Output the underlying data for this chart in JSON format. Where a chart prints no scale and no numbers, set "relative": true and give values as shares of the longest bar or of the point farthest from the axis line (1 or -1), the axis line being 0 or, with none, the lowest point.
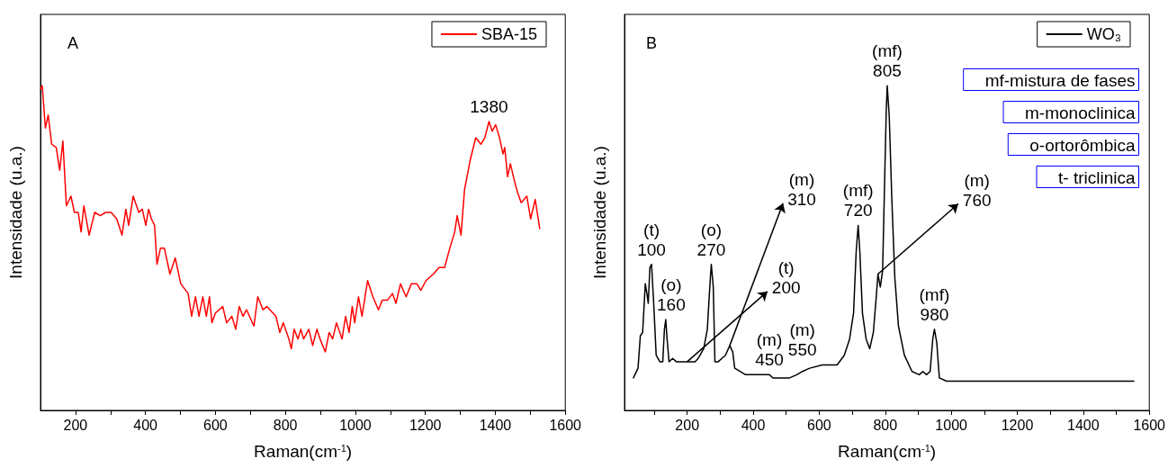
{
  "chart_data": [
    {
      "type": "line",
      "title": "A",
      "xlabel": "Raman(cm$^{-1}$)",
      "ylabel": "Intensidade (u.a.)",
      "relative": true,
      "legend": "top right",
      "grid": false,
      "marker": "none",
      "xlim": [
        100,
        1600
      ],
      "xticks": [
        200,
        {
          "value": 300,
          "label": null
        },
        400,
        {
          "value": 500,
          "label": null
        },
        600,
        {
          "value": 700,
          "label": null
        },
        800,
        {
          "value": 900,
          "label": null
        },
        1000,
        {
          "value": 1100,
          "label": null
        },
        1200,
        {
          "value": 1300,
          "label": null
        },
        1400,
        {
          "value": 1500,
          "label": null
        },
        1600
      ],
      "series": [
        {
          "name": "SBA-15",
          "color": "#ff0000",
          "x": [
            100,
            105,
            114,
            122,
            132,
            145,
            155,
            164,
            174,
            187,
            197,
            208,
            216,
            224,
            239,
            255,
            271,
            286,
            302,
            318,
            333,
            344,
            352,
            365,
            381,
            391,
            401,
            409,
            417,
            426,
            433,
            443,
            454,
            470,
            485,
            501,
            522,
            532,
            543,
            553,
            564,
            574,
            583,
            590,
            600,
            621,
            632,
            647,
            658,
            668,
            679,
            689,
            710,
            721,
            736,
            747,
            773,
            784,
            794,
            810,
            817,
            825,
            836,
            844,
            852,
            867,
            878,
            890,
            899,
            914,
            925,
            935,
            946,
            962,
            972,
            982,
            991,
            998,
            1009,
            1019,
            1035,
            1050,
            1066,
            1077,
            1092,
            1106,
            1116,
            1129,
            1145,
            1160,
            1176,
            1187,
            1202,
            1223,
            1239,
            1255,
            1270,
            1284,
            1291,
            1302,
            1312,
            1328,
            1344,
            1359,
            1370,
            1382,
            1391,
            1401,
            1412,
            1422,
            1427,
            1435,
            1443,
            1454,
            1464,
            1474,
            1490,
            1501,
            1514,
            1527
          ],
          "values": [
            0.99,
            1.0,
            0.87,
            0.91,
            0.82,
            0.81,
            0.74,
            0.83,
            0.63,
            0.66,
            0.61,
            0.61,
            0.55,
            0.63,
            0.54,
            0.61,
            0.6,
            0.61,
            0.61,
            0.59,
            0.54,
            0.62,
            0.57,
            0.66,
            0.61,
            0.62,
            0.57,
            0.62,
            0.59,
            0.57,
            0.45,
            0.5,
            0.5,
            0.42,
            0.47,
            0.39,
            0.36,
            0.29,
            0.35,
            0.29,
            0.35,
            0.29,
            0.35,
            0.27,
            0.3,
            0.32,
            0.27,
            0.29,
            0.25,
            0.32,
            0.29,
            0.31,
            0.26,
            0.35,
            0.31,
            0.32,
            0.29,
            0.24,
            0.27,
            0.22,
            0.19,
            0.25,
            0.22,
            0.25,
            0.22,
            0.25,
            0.2,
            0.25,
            0.22,
            0.18,
            0.24,
            0.22,
            0.27,
            0.22,
            0.29,
            0.24,
            0.32,
            0.27,
            0.35,
            0.29,
            0.4,
            0.35,
            0.31,
            0.34,
            0.34,
            0.36,
            0.33,
            0.39,
            0.35,
            0.39,
            0.39,
            0.37,
            0.4,
            0.42,
            0.44,
            0.44,
            0.5,
            0.55,
            0.6,
            0.54,
            0.68,
            0.77,
            0.84,
            0.82,
            0.84,
            0.89,
            0.86,
            0.88,
            0.84,
            0.79,
            0.81,
            0.72,
            0.76,
            0.71,
            0.67,
            0.64,
            0.66,
            0.59,
            0.65,
            0.56
          ]
        }
      ],
      "annotations": [
        {
          "text": "1380",
          "x": 1382,
          "y": 0.89
        }
      ]
    },
    {
      "type": "line",
      "title": "B",
      "xlabel": "Raman(cm$^{-1}$)",
      "ylabel": "Intensidade (u.a.)",
      "relative": true,
      "legend": "top right",
      "grid": false,
      "marker": "none",
      "xlim": [
        10,
        1600
      ],
      "xticks": [
        {
          "value": 100,
          "label": null
        },
        200,
        {
          "value": 300,
          "label": null
        },
        400,
        {
          "value": 500,
          "label": null
        },
        600,
        {
          "value": 700,
          "label": null
        },
        800,
        {
          "value": 900,
          "label": null
        },
        1000,
        {
          "value": 1100,
          "label": null
        },
        1200,
        {
          "value": 1300,
          "label": null
        },
        1400,
        {
          "value": 1500,
          "label": null
        },
        1600
      ],
      "series": [
        {
          "name": "WO₃",
          "color": "#000000",
          "x": [
            37,
            51,
            58,
            65,
            73,
            78,
            82,
            87,
            92,
            98,
            106,
            117,
            126,
            131,
            135,
            139,
            145,
            156,
            167,
            183,
            200,
            213,
            224,
            233,
            250,
            261,
            269,
            273,
            279,
            284,
            294,
            305,
            316,
            329,
            338,
            344,
            360,
            377,
            399,
            416,
            432,
            449,
            460,
            477,
            510,
            532,
            549,
            571,
            609,
            654,
            676,
            692,
            704,
            712,
            718,
            723,
            731,
            742,
            753,
            764,
            772,
            778,
            785,
            792,
            798,
            803,
            806,
            812,
            820,
            829,
            840,
            858,
            881,
            903,
            914,
            925,
            936,
            944,
            949,
            956,
            964,
            986,
            1085,
            1251,
            1553
          ],
          "values": [
            0.1,
            0.13,
            0.23,
            0.24,
            0.39,
            0.36,
            0.33,
            0.44,
            0.45,
            0.34,
            0.17,
            0.15,
            0.15,
            0.25,
            0.28,
            0.22,
            0.15,
            0.16,
            0.15,
            0.15,
            0.15,
            0.15,
            0.15,
            0.16,
            0.19,
            0.25,
            0.39,
            0.45,
            0.38,
            0.15,
            0.15,
            0.16,
            0.17,
            0.2,
            0.18,
            0.13,
            0.12,
            0.11,
            0.11,
            0.11,
            0.11,
            0.11,
            0.1,
            0.1,
            0.1,
            0.11,
            0.12,
            0.13,
            0.14,
            0.14,
            0.17,
            0.22,
            0.3,
            0.49,
            0.57,
            0.49,
            0.3,
            0.22,
            0.19,
            0.24,
            0.34,
            0.42,
            0.38,
            0.43,
            0.7,
            0.92,
            1.0,
            0.91,
            0.65,
            0.41,
            0.26,
            0.17,
            0.12,
            0.11,
            0.12,
            0.11,
            0.12,
            0.22,
            0.25,
            0.21,
            0.1,
            0.09,
            0.09,
            0.09,
            0.09
          ]
        }
      ],
      "annotations": [
        {
          "text": "(t)",
          "x": 92,
          "y": 0.45
        },
        {
          "text": "100",
          "x": 92,
          "y": 0.45
        },
        {
          "text": "(o)",
          "x": 135,
          "y": 0.28
        },
        {
          "text": "160",
          "x": 135,
          "y": 0.28
        },
        {
          "text": "(t)",
          "x": 200,
          "y": 0.15
        },
        {
          "text": "200",
          "x": 200,
          "y": 0.15
        },
        {
          "text": "(o)",
          "x": 273,
          "y": 0.45
        },
        {
          "text": "270",
          "x": 273,
          "y": 0.45
        },
        {
          "text": "(m)",
          "x": 329,
          "y": 0.2
        },
        {
          "text": "310",
          "x": 329,
          "y": 0.2
        },
        {
          "text": "(m)",
          "x": 449,
          "y": 0.11
        },
        {
          "text": "450",
          "x": 449,
          "y": 0.11
        },
        {
          "text": "(m)",
          "x": 549,
          "y": 0.12
        },
        {
          "text": "550",
          "x": 549,
          "y": 0.12
        },
        {
          "text": "(mf)",
          "x": 806,
          "y": 1.0
        },
        {
          "text": "805",
          "x": 806,
          "y": 1.0
        },
        {
          "text": "(mf)",
          "x": 718,
          "y": 0.57
        },
        {
          "text": "720",
          "x": 718,
          "y": 0.57
        },
        {
          "text": "(m)",
          "x": 778,
          "y": 0.42
        },
        {
          "text": "760",
          "x": 778,
          "y": 0.42
        },
        {
          "text": "(mf)",
          "x": 949,
          "y": 0.25
        },
        {
          "text": "980",
          "x": 949,
          "y": 0.25
        },
        "mf-mistura de fases",
        "m-monoclinica",
        "o-ortorômbica",
        "t- triclinica"
      ]
    }
  ]
}
